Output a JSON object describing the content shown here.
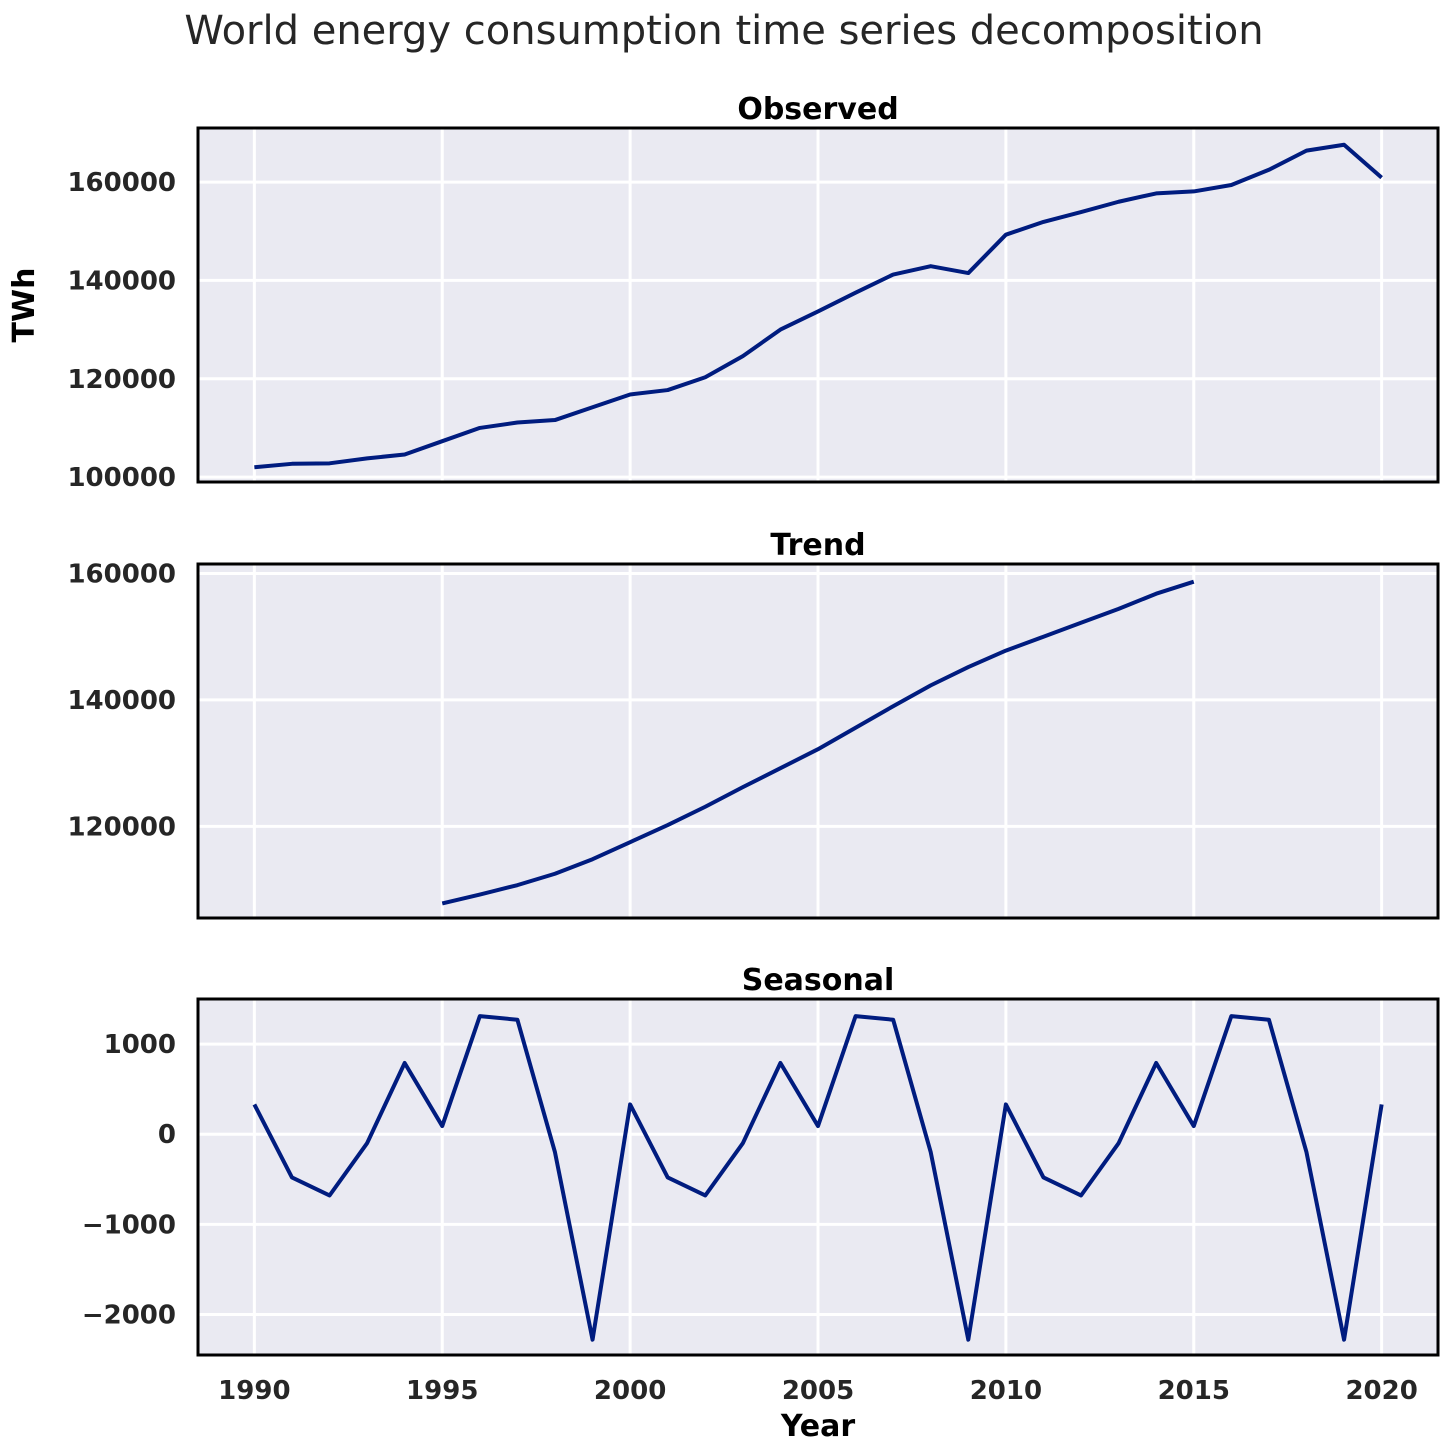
{
  "chart_data": {
    "type": "line",
    "title": "World energy consumption time series decomposition",
    "xlabel": "Year",
    "ylabel": "TWh",
    "x": [
      1990,
      1991,
      1992,
      1993,
      1994,
      1995,
      1996,
      1997,
      1998,
      1999,
      2000,
      2001,
      2002,
      2003,
      2004,
      2005,
      2006,
      2007,
      2008,
      2009,
      2010,
      2011,
      2012,
      2013,
      2014,
      2015,
      2016,
      2017,
      2018,
      2019,
      2020
    ],
    "xlim": [
      1988.5,
      2021.5
    ],
    "xticks": [
      1990,
      1995,
      2000,
      2005,
      2010,
      2015,
      2020
    ],
    "grid": true,
    "line_color": "#001c7f",
    "panel_background": "#eaeaf2",
    "panels": [
      {
        "title": "Observed",
        "ylim": [
          99000,
          171000
        ],
        "yticks": [
          100000,
          120000,
          140000,
          160000
        ],
        "values": [
          102000,
          102700,
          102800,
          103800,
          104600,
          107300,
          110000,
          111100,
          111600,
          114200,
          116800,
          117700,
          120300,
          124600,
          130000,
          133700,
          137500,
          141200,
          142900,
          141500,
          149300,
          151900,
          153900,
          156000,
          157700,
          158100,
          159400,
          162500,
          166400,
          167600,
          160900
        ]
      },
      {
        "title": "Trend",
        "ylim": [
          105500,
          161500
        ],
        "yticks": [
          120000,
          140000,
          160000
        ],
        "values": [
          null,
          null,
          null,
          null,
          null,
          107800,
          109200,
          110700,
          112500,
          114800,
          117500,
          120200,
          123100,
          126200,
          129200,
          132200,
          135600,
          139000,
          142300,
          145200,
          147800,
          150000,
          152200,
          154400,
          156800,
          158700,
          null,
          null,
          null,
          null,
          null
        ]
      },
      {
        "title": "Seasonal",
        "ylim": [
          -2450,
          1500
        ],
        "yticks": [
          -2000,
          -1000,
          0,
          1000
        ],
        "values": [
          330,
          -480,
          -680,
          -100,
          790,
          90,
          1310,
          1270,
          -200,
          -2280,
          330,
          -480,
          -680,
          -100,
          790,
          90,
          1310,
          1270,
          -200,
          -2280,
          330,
          -480,
          -680,
          -100,
          790,
          90,
          1310,
          1270,
          -200,
          -2280,
          330
        ]
      }
    ]
  }
}
